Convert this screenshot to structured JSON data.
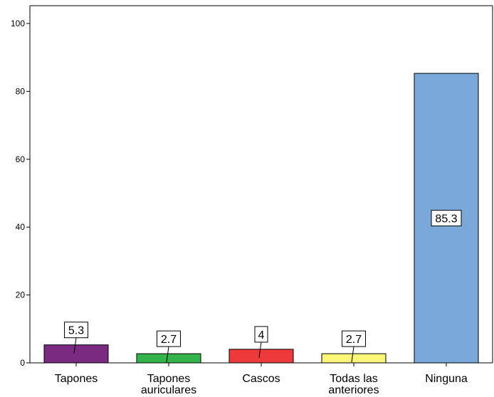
{
  "chart_data": {
    "type": "bar",
    "categories": [
      [
        "Tapones"
      ],
      [
        "Tapones",
        "auriculares"
      ],
      [
        "Cascos"
      ],
      [
        "Todas las",
        "anteriores"
      ],
      [
        "Ninguna"
      ]
    ],
    "values": [
      5.3,
      2.7,
      4,
      2.7,
      85.3
    ],
    "value_labels": [
      "5.3",
      "2.7",
      "4",
      "2.7",
      "85.3"
    ],
    "colors": [
      "#7b2a82",
      "#33b34a",
      "#ee3a3a",
      "#fbf57a",
      "#7aa8d8"
    ],
    "ylim": [
      0,
      100
    ],
    "yticks": [
      0,
      20,
      40,
      60,
      80,
      100
    ],
    "title": "",
    "xlabel": "",
    "ylabel": "",
    "grid": false
  }
}
